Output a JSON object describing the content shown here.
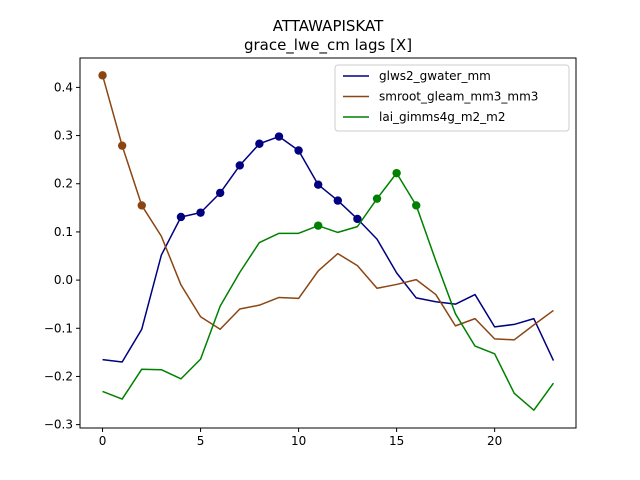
{
  "chart_data": {
    "type": "line",
    "title": "ATTAWAPISKAT",
    "subtitle": "grace_lwe_cm lags [X]",
    "xlabel": "",
    "ylabel": "",
    "xlim": [
      -1.15,
      24.15
    ],
    "ylim": [
      -0.307,
      0.461
    ],
    "xticks": [
      0,
      5,
      10,
      15,
      20
    ],
    "yticks": [
      -0.3,
      -0.2,
      -0.1,
      0.0,
      0.1,
      0.2,
      0.3,
      0.4
    ],
    "ytick_labels": [
      "−0.3",
      "−0.2",
      "−0.1",
      "0.0",
      "0.1",
      "0.2",
      "0.3",
      "0.4"
    ],
    "grid": false,
    "legend_position": "top-right",
    "x": [
      0,
      1,
      2,
      3,
      4,
      5,
      6,
      7,
      8,
      9,
      10,
      11,
      12,
      13,
      14,
      15,
      16,
      17,
      18,
      19,
      20,
      21,
      22,
      23
    ],
    "series": [
      {
        "name": "glws2_gwater_mm",
        "color": "#000080",
        "values": [
          -0.165,
          -0.17,
          -0.102,
          0.052,
          0.131,
          0.14,
          0.181,
          0.238,
          0.283,
          0.298,
          0.269,
          0.198,
          0.165,
          0.127,
          0.085,
          0.015,
          -0.037,
          -0.045,
          -0.05,
          -0.03,
          -0.097,
          -0.092,
          -0.08,
          -0.167
        ],
        "markers": [
          4,
          5,
          6,
          7,
          8,
          9,
          10,
          11,
          12,
          13
        ]
      },
      {
        "name": "smroot_gleam_mm3_mm3",
        "color": "#8B4513",
        "values": [
          0.425,
          0.279,
          0.155,
          0.091,
          -0.01,
          -0.076,
          -0.102,
          -0.06,
          -0.052,
          -0.036,
          -0.038,
          0.019,
          0.055,
          0.03,
          -0.017,
          -0.009,
          0.001,
          -0.03,
          -0.095,
          -0.08,
          -0.122,
          -0.124,
          -0.093,
          -0.063
        ],
        "markers": [
          0,
          1,
          2
        ]
      },
      {
        "name": "lai_gimms4g_m2_m2",
        "color": "#008000",
        "values": [
          -0.231,
          -0.247,
          -0.185,
          -0.186,
          -0.205,
          -0.164,
          -0.054,
          0.016,
          0.078,
          0.097,
          0.097,
          0.113,
          0.099,
          0.111,
          0.169,
          0.222,
          0.155,
          0.04,
          -0.07,
          -0.137,
          -0.153,
          -0.235,
          -0.27,
          -0.214
        ],
        "markers": [
          11,
          14,
          15,
          16
        ]
      }
    ]
  }
}
